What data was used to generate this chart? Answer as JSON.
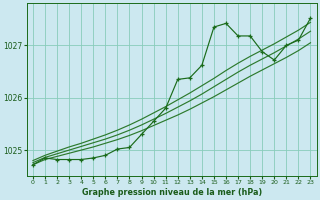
{
  "title": "Graphe pression niveau de la mer (hPa)",
  "bg_color": "#cce8f0",
  "grid_color": "#88ccbb",
  "line_color": "#1a6b1a",
  "line_color2": "#2d7a2d",
  "xlabel_color": "#1a5c1a",
  "xlim": [
    -0.5,
    23.5
  ],
  "ylim": [
    1024.5,
    1027.8
  ],
  "yticks": [
    1025,
    1026,
    1027
  ],
  "xticks": [
    0,
    1,
    2,
    3,
    4,
    5,
    6,
    7,
    8,
    9,
    10,
    11,
    12,
    13,
    14,
    15,
    16,
    17,
    18,
    19,
    20,
    21,
    22,
    23
  ],
  "main_line_x": [
    0,
    1,
    2,
    3,
    4,
    5,
    6,
    7,
    8,
    9,
    10,
    11,
    12,
    13,
    14,
    15,
    16,
    17,
    18,
    19,
    20,
    21,
    22,
    23
  ],
  "main_line_y": [
    1024.72,
    1024.85,
    1024.82,
    1024.82,
    1024.82,
    1024.85,
    1024.9,
    1025.02,
    1025.05,
    1025.3,
    1025.55,
    1025.8,
    1026.35,
    1026.38,
    1026.62,
    1027.35,
    1027.42,
    1027.18,
    1027.18,
    1026.88,
    1026.72,
    1027.0,
    1027.1,
    1027.52
  ],
  "smooth_line1_y": [
    1024.72,
    1024.82,
    1024.88,
    1024.94,
    1025.0,
    1025.06,
    1025.13,
    1025.2,
    1025.28,
    1025.37,
    1025.47,
    1025.57,
    1025.67,
    1025.78,
    1025.9,
    1026.02,
    1026.15,
    1026.28,
    1026.41,
    1026.53,
    1026.65,
    1026.77,
    1026.9,
    1027.05
  ],
  "smooth_line2_y": [
    1024.76,
    1024.86,
    1024.93,
    1025.0,
    1025.07,
    1025.14,
    1025.21,
    1025.29,
    1025.38,
    1025.48,
    1025.59,
    1025.7,
    1025.82,
    1025.94,
    1026.07,
    1026.21,
    1026.35,
    1026.49,
    1026.62,
    1026.74,
    1026.86,
    1026.99,
    1027.12,
    1027.27
  ],
  "smooth_line3_y": [
    1024.8,
    1024.9,
    1024.98,
    1025.06,
    1025.13,
    1025.21,
    1025.29,
    1025.38,
    1025.48,
    1025.59,
    1025.71,
    1025.83,
    1025.96,
    1026.09,
    1026.23,
    1026.37,
    1026.52,
    1026.66,
    1026.79,
    1026.91,
    1027.03,
    1027.16,
    1027.29,
    1027.44
  ]
}
